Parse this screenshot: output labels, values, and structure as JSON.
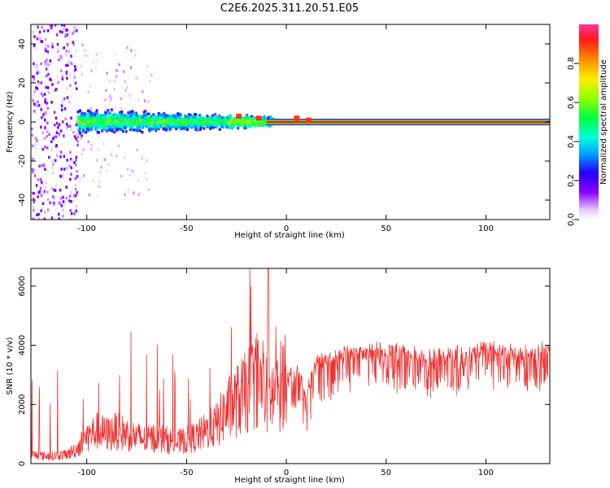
{
  "title": "C2E6.2025.311.20.51.E05",
  "chart_data": [
    {
      "type": "heatmap",
      "xlabel": "Height of straight line (km)",
      "ylabel": "Frequency (Hz)",
      "xlim": [
        -128,
        132
      ],
      "ylim": [
        -50,
        50
      ],
      "xticks": [
        -100,
        -50,
        0,
        50,
        100
      ],
      "yticks": [
        -40,
        -20,
        0,
        20,
        40
      ],
      "colorbar": {
        "label": "Normalized spectral amplitude",
        "range": [
          0,
          1
        ],
        "ticks": [
          0.0,
          0.2,
          0.4,
          0.6,
          0.8
        ]
      },
      "description_regions": [
        {
          "x_range": [
            -128,
            -105
          ],
          "freq_halfwidth": 50,
          "amplitude": 0.15
        },
        {
          "x_range": [
            -105,
            -10
          ],
          "freq_halfwidth": 8,
          "amplitude": 0.35
        },
        {
          "x_range": [
            -10,
            132
          ],
          "freq_halfwidth": 1,
          "amplitude": 0.95
        }
      ]
    },
    {
      "type": "line",
      "xlabel": "Height of straight line (km)",
      "ylabel": "SNR (10 * v/v)",
      "xlim": [
        -128,
        132
      ],
      "ylim": [
        0,
        6600
      ],
      "xticks": [
        -100,
        -50,
        0,
        50,
        100
      ],
      "yticks": [
        0,
        2000,
        4000,
        6000
      ],
      "series": [
        {
          "name": "SNR",
          "color": "#ee3333",
          "x": [
            -128,
            -120,
            -110,
            -105,
            -100,
            -95,
            -90,
            -85,
            -80,
            -75,
            -70,
            -65,
            -60,
            -55,
            -50,
            -45,
            -40,
            -35,
            -30,
            -25,
            -20,
            -15,
            -10,
            -5,
            0,
            5,
            10,
            15,
            20,
            30,
            40,
            50,
            60,
            70,
            80,
            90,
            100,
            110,
            120,
            132
          ],
          "values": [
            300,
            250,
            300,
            500,
            900,
            1100,
            1000,
            1100,
            1000,
            900,
            800,
            900,
            800,
            700,
            800,
            900,
            1100,
            1300,
            1800,
            2100,
            2400,
            2900,
            2300,
            2300,
            3100,
            3400,
            2500,
            3600,
            3700,
            3900,
            4000,
            4000,
            3900,
            3800,
            3900,
            3900,
            4100,
            4000,
            3900,
            4100
          ]
        }
      ]
    }
  ]
}
